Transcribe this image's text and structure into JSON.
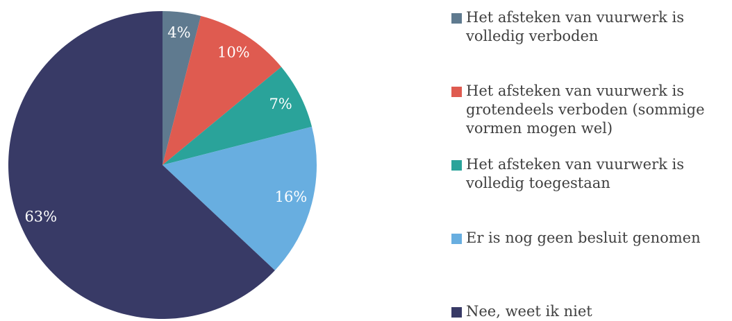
{
  "chart_data": {
    "type": "pie",
    "categories": [
      "Het afsteken van vuurwerk is volledig verboden",
      "Het afsteken van vuurwerk is grotendeels verboden (sommige vormen mogen wel)",
      "Het afsteken van vuurwerk is volledig toegestaan",
      "Er is nog geen besluit genomen",
      "Nee, weet ik niet"
    ],
    "values": [
      4,
      10,
      7,
      16,
      63
    ],
    "value_labels": [
      "4%",
      "10%",
      "7%",
      "16%",
      "63%"
    ],
    "colors": [
      "#5f7a8f",
      "#df5b50",
      "#2aa39a",
      "#68aee0",
      "#383a66"
    ],
    "legend": "right"
  }
}
